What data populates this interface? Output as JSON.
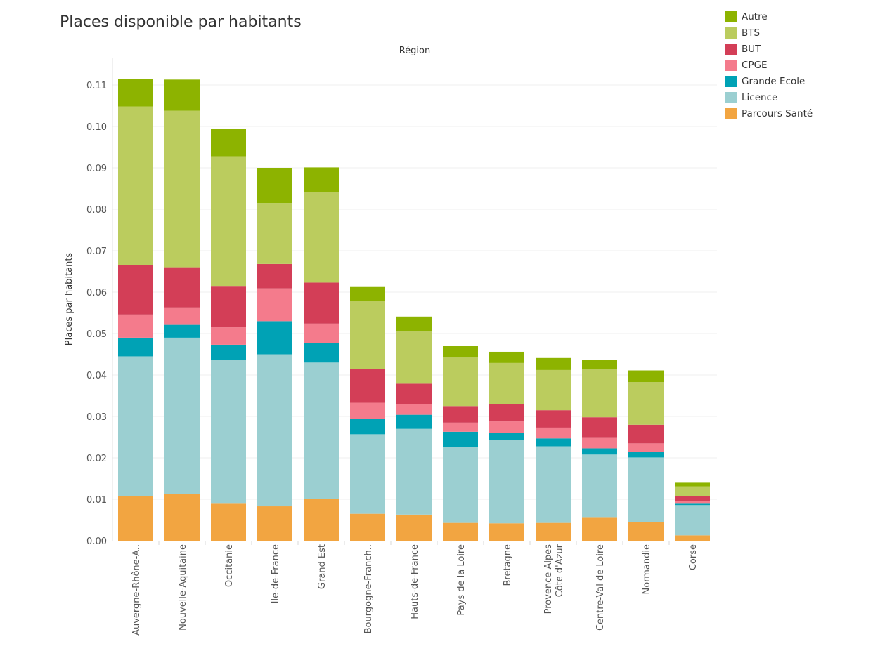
{
  "chart_data": {
    "type": "bar",
    "stacked": true,
    "title": "Places disponible par habitants",
    "column_header": "Région",
    "ylabel": "Places par habitants",
    "ylim": [
      0,
      0.11
    ],
    "yticks": [
      "0.00",
      "0.01",
      "0.02",
      "0.03",
      "0.04",
      "0.05",
      "0.06",
      "0.07",
      "0.08",
      "0.09",
      "0.10",
      "0.11"
    ],
    "grid": true,
    "legend_position": "top-right",
    "categories": [
      "Auvergne-Rhône-A..",
      "Nouvelle-Aquitaine",
      "Occitanie",
      "Ile-de-France",
      "Grand Est",
      "Bourgogne-Franch..",
      "Hauts-de-France",
      "Pays de la Loire",
      "Bretagne",
      "Provence Alpes\nCôte d'Azur",
      "Centre-Val de Loire",
      "Normandie",
      "Corse"
    ],
    "series": [
      {
        "name": "Parcours Santé",
        "color": "#F2A541",
        "values": [
          0.0107,
          0.0112,
          0.0091,
          0.0083,
          0.0101,
          0.0065,
          0.0063,
          0.0043,
          0.0042,
          0.0043,
          0.0057,
          0.0045,
          0.0013
        ]
      },
      {
        "name": "Licence",
        "color": "#9BCFD1",
        "values": [
          0.0338,
          0.0378,
          0.0346,
          0.0367,
          0.0329,
          0.0192,
          0.0207,
          0.0183,
          0.0202,
          0.0185,
          0.0151,
          0.0156,
          0.0073
        ]
      },
      {
        "name": "Grande Ecole",
        "color": "#00A2B5",
        "values": [
          0.0045,
          0.0031,
          0.0036,
          0.008,
          0.0047,
          0.0037,
          0.0034,
          0.0037,
          0.0017,
          0.0019,
          0.0015,
          0.0013,
          0.0005
        ]
      },
      {
        "name": "CPGE",
        "color": "#F47B8C",
        "values": [
          0.0056,
          0.0042,
          0.0042,
          0.0079,
          0.0047,
          0.0039,
          0.0026,
          0.0022,
          0.0027,
          0.0026,
          0.0025,
          0.0021,
          0.0004
        ]
      },
      {
        "name": "BUT",
        "color": "#D33E57",
        "values": [
          0.0119,
          0.0097,
          0.01,
          0.0059,
          0.0099,
          0.0081,
          0.0049,
          0.004,
          0.0042,
          0.0042,
          0.005,
          0.0045,
          0.0013
        ]
      },
      {
        "name": "BTS",
        "color": "#BBCC5E",
        "values": [
          0.0383,
          0.0378,
          0.0313,
          0.0147,
          0.0218,
          0.0164,
          0.0126,
          0.0117,
          0.0099,
          0.0097,
          0.0117,
          0.0103,
          0.0023
        ]
      },
      {
        "name": "Autre",
        "color": "#8DB300",
        "values": [
          0.0067,
          0.0075,
          0.0066,
          0.0085,
          0.006,
          0.0036,
          0.0036,
          0.0029,
          0.0027,
          0.0029,
          0.0022,
          0.0028,
          0.0009
        ]
      }
    ]
  }
}
